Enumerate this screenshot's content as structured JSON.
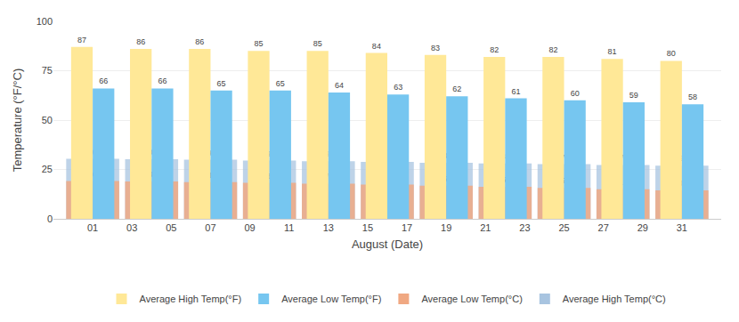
{
  "chart_data": {
    "type": "bar",
    "xlabel": "August (Date)",
    "ylabel": "Temperature (°F/°C)",
    "x": [
      1,
      4,
      7,
      10,
      13,
      16,
      19,
      22,
      25,
      28,
      31
    ],
    "series": [
      {
        "name": "Average High Temp(°F)",
        "color": "#FFE897",
        "values": [
          87,
          86,
          86,
          85,
          85,
          84,
          83,
          82,
          82,
          81,
          80
        ]
      },
      {
        "name": "Average Low Temp(°F)",
        "color": "#76C6F0",
        "values": [
          66,
          66,
          65,
          65,
          64,
          63,
          62,
          61,
          60,
          59,
          58
        ]
      },
      {
        "name": "Average Low Temp(°C)",
        "color": "#F0A882",
        "values": [
          19.1,
          18.9,
          18.6,
          18.2,
          17.8,
          17.3,
          16.8,
          16.2,
          15.7,
          15,
          14.4
        ]
      },
      {
        "name": "Average High Temp(°C)",
        "color": "#A8C4E0",
        "values": [
          30.4,
          30.2,
          29.9,
          29.5,
          29.2,
          28.8,
          28.4,
          28,
          27.7,
          27.3,
          26.9
        ]
      }
    ],
    "xlim": [
      -1,
      33
    ],
    "xticks": [
      {
        "value": 1,
        "label": "01"
      },
      {
        "value": 3,
        "label": "03"
      },
      {
        "value": 5,
        "label": "05"
      },
      {
        "value": 7,
        "label": "07"
      },
      {
        "value": 9,
        "label": "09"
      },
      11,
      13,
      15,
      17,
      19,
      21,
      23,
      25,
      27,
      29,
      31
    ],
    "ylim": [
      0,
      100
    ],
    "yticks": [
      0,
      25,
      50,
      75,
      100
    ],
    "grid": true,
    "legend": "bottom",
    "data_labels": true
  }
}
